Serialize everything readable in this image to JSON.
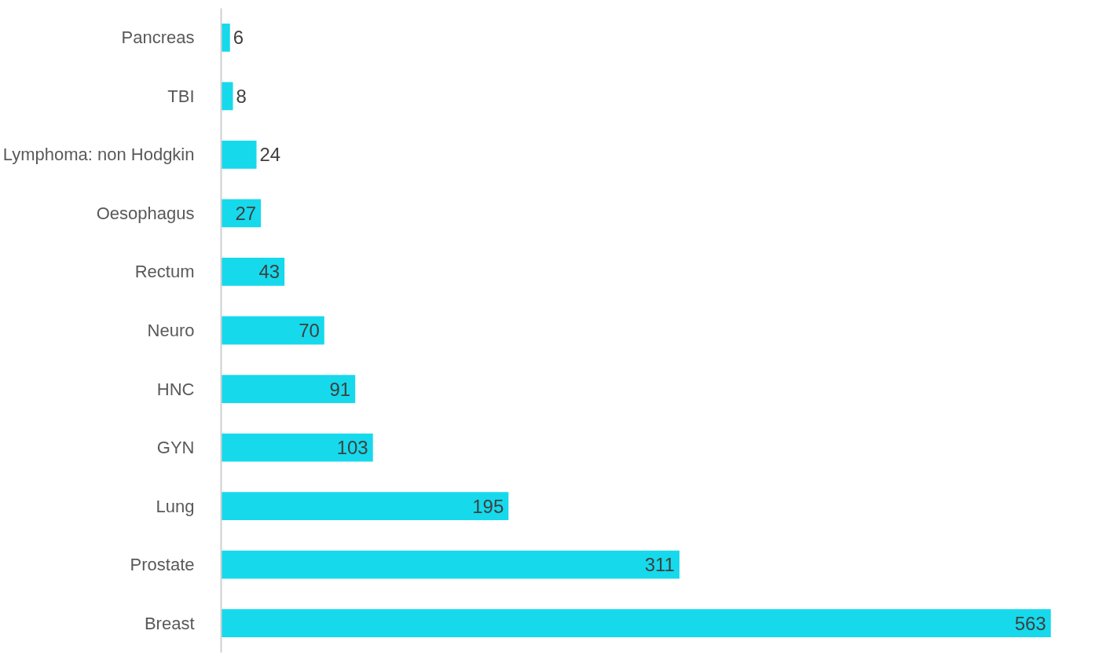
{
  "chart_data": {
    "type": "bar",
    "orientation": "horizontal",
    "categories": [
      "Pancreas",
      "TBI",
      "Lymphoma: non Hodgkin",
      "Oesophagus",
      "Rectum",
      "Neuro",
      "HNC",
      "GYN",
      "Lung",
      "Prostate",
      "Breast"
    ],
    "values": [
      6,
      8,
      24,
      27,
      43,
      70,
      91,
      103,
      195,
      311,
      563
    ],
    "color": "#16d9ec",
    "data_labels": true,
    "grid": false
  }
}
